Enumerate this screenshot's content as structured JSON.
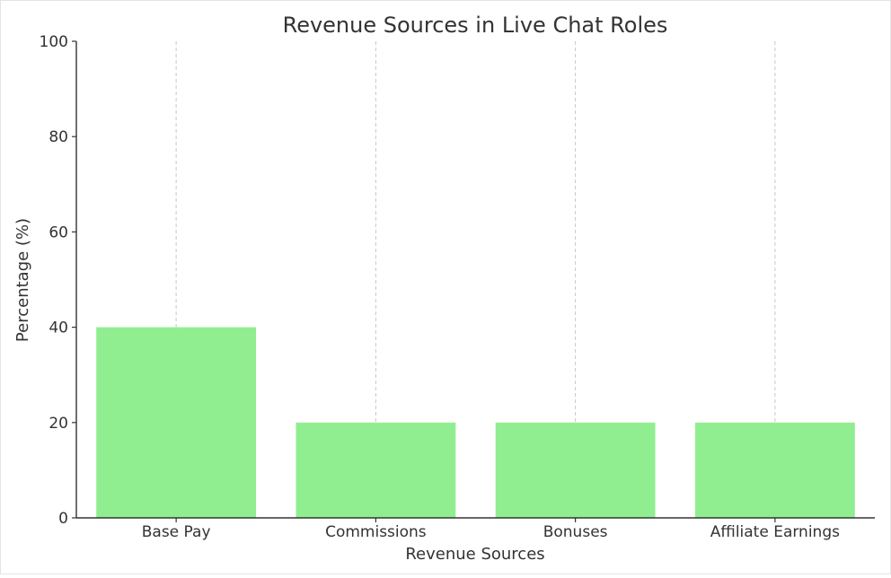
{
  "chart_data": {
    "type": "bar",
    "title": "Revenue Sources in Live Chat Roles",
    "xlabel": "Revenue Sources",
    "ylabel": "Percentage (%)",
    "categories": [
      "Base Pay",
      "Commissions",
      "Bonuses",
      "Affiliate Earnings"
    ],
    "values": [
      40,
      20,
      20,
      20
    ],
    "ylim": [
      0,
      100
    ],
    "yticks": [
      0,
      20,
      40,
      60,
      80,
      100
    ],
    "grid": "vertical dashed at categories",
    "legend": "none",
    "colors": {
      "bar": "#90ee90",
      "grid": "#c8c8c8",
      "axis": "#333333",
      "text": "#333333"
    }
  }
}
